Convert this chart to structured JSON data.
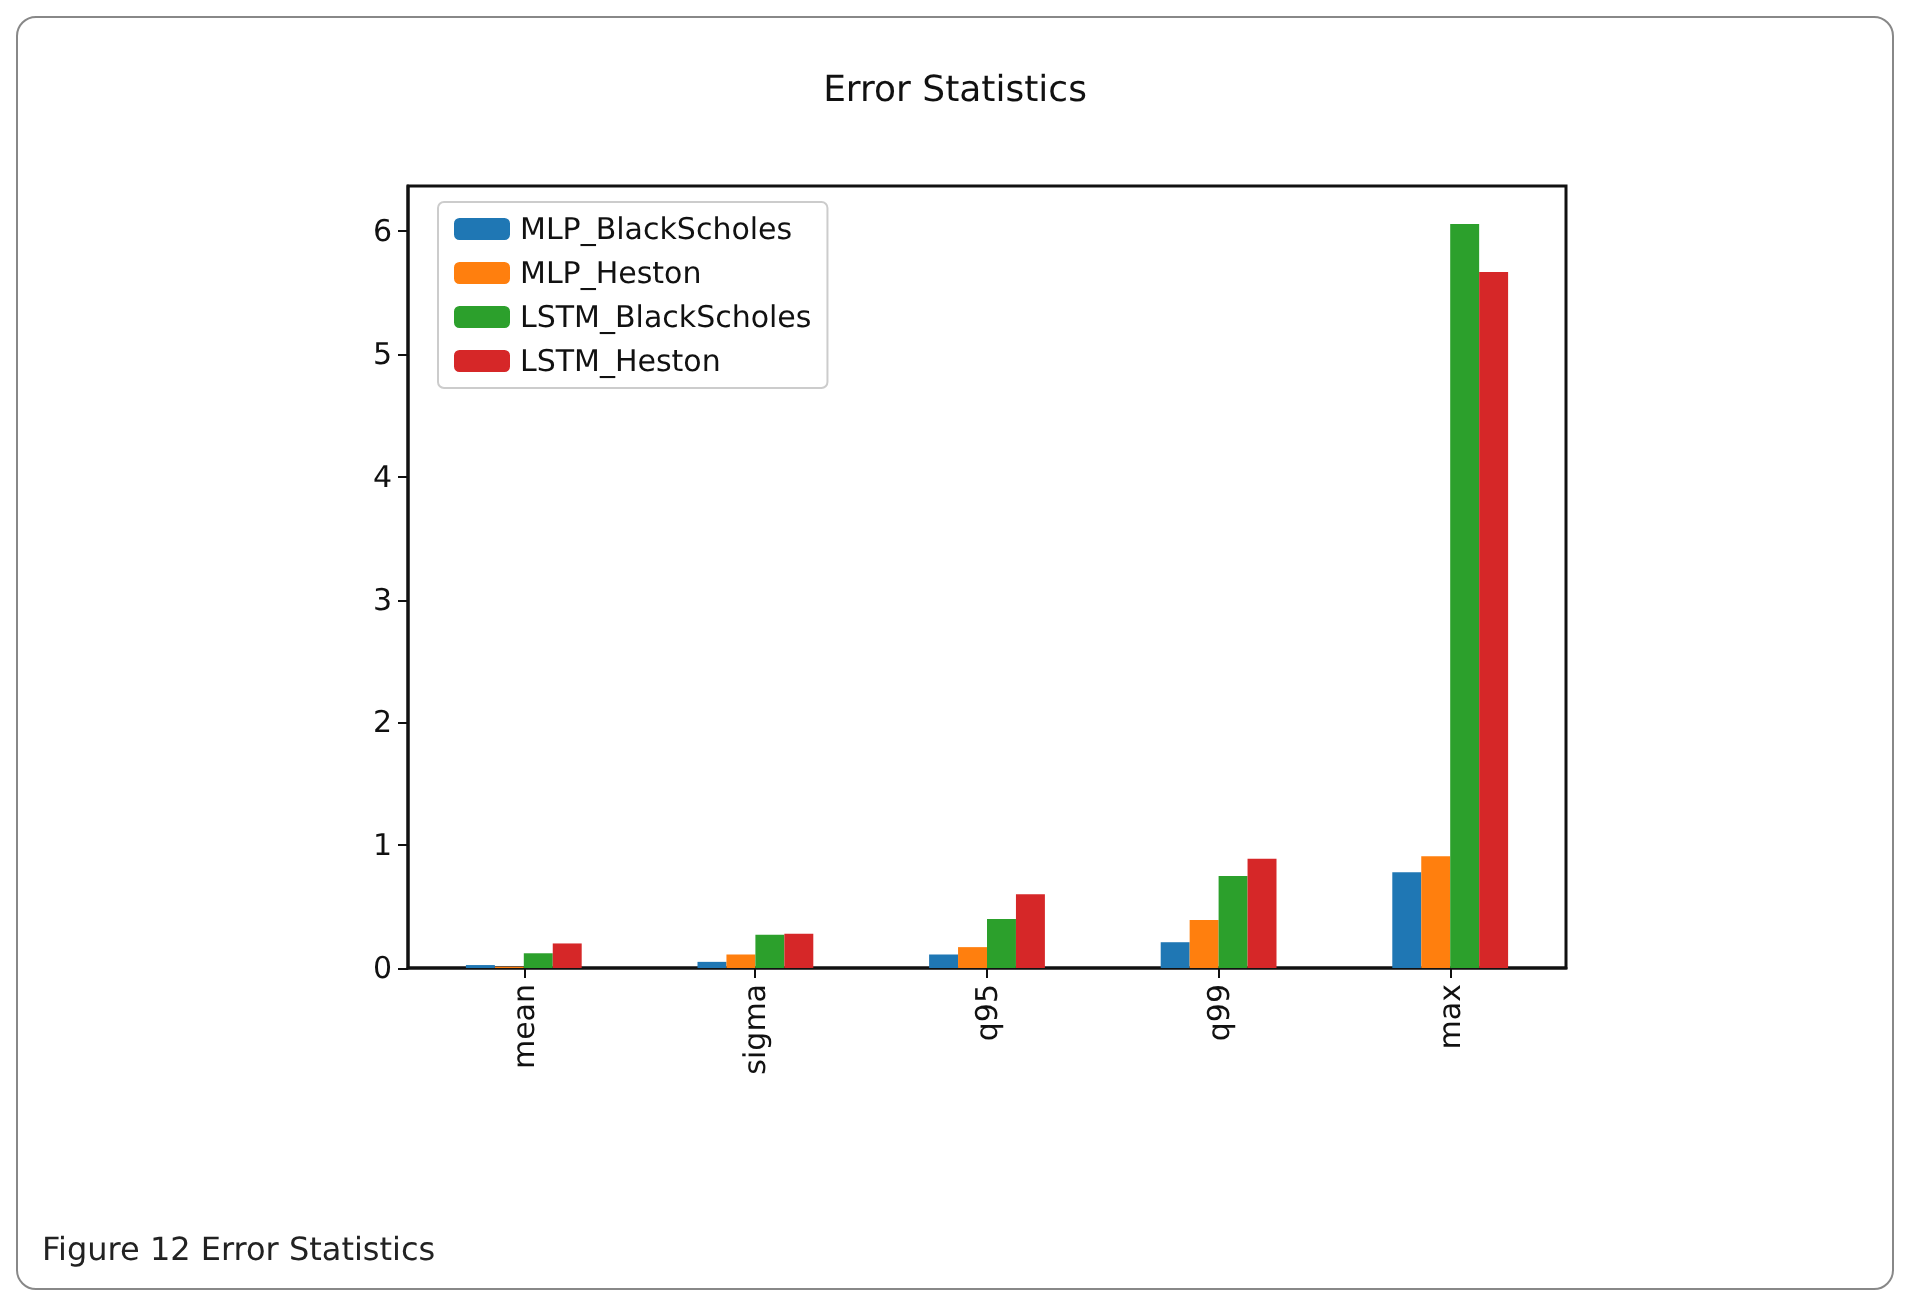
{
  "chart_data": {
    "type": "bar",
    "title": "Error Statistics",
    "categories": [
      "mean",
      "sigma",
      "q95",
      "q99",
      "max"
    ],
    "series": [
      {
        "name": "MLP_BlackScholes",
        "color": "#1f77b4",
        "values": [
          0.024,
          0.05,
          0.11,
          0.21,
          0.78
        ]
      },
      {
        "name": "MLP_Heston",
        "color": "#ff7f0e",
        "values": [
          0.01,
          0.11,
          0.17,
          0.39,
          0.91
        ]
      },
      {
        "name": "LSTM_BlackScholes",
        "color": "#2ca02c",
        "values": [
          0.12,
          0.27,
          0.4,
          0.75,
          6.06
        ]
      },
      {
        "name": "LSTM_Heston",
        "color": "#d62728",
        "values": [
          0.2,
          0.28,
          0.6,
          0.89,
          5.67
        ]
      }
    ],
    "ylim": [
      0,
      6.37
    ],
    "yticks": [
      0,
      1,
      2,
      3,
      4,
      5,
      6
    ],
    "grid": false,
    "legend": "top left",
    "annotations": [
      "Figure 12 Error Statistics"
    ]
  }
}
